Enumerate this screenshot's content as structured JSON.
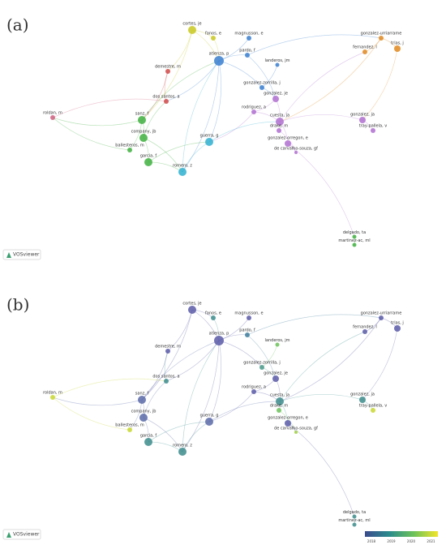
{
  "panels": [
    {
      "label": "(a)",
      "logo": "VOSviewer"
    },
    {
      "label": "(b)",
      "logo": "VOSviewer",
      "colorbar": {
        "ticks": [
          "2018",
          "2019",
          "2020",
          "2021"
        ],
        "colors": [
          "#3b4a8c",
          "#2a8c8c",
          "#6cc25a",
          "#f2e52b"
        ]
      }
    }
  ],
  "nodes": [
    {
      "label": "cortes, je",
      "color_a": "#c8c820",
      "color_b": "#5a5aa8"
    },
    {
      "label": "fanos, e",
      "color_a": "#c8c820",
      "color_b": "#3d8c8c"
    },
    {
      "label": "magnusson, e",
      "color_a": "#3a7fd0",
      "color_b": "#5a5aa8"
    },
    {
      "label": "atienza, p",
      "color_a": "#3a7fd0",
      "color_b": "#5a5aa8"
    },
    {
      "label": "pardo, f",
      "color_a": "#3a7fd0",
      "color_b": "#3d7c9c"
    },
    {
      "label": "landeros, jm",
      "color_a": "#3a7fd0",
      "color_b": "#6cc25a"
    },
    {
      "label": "gonzalez-zorrilla, j",
      "color_a": "#3a7fd0",
      "color_b": "#4a9a8a"
    },
    {
      "label": "gonzalez, je",
      "color_a": "#b070d0",
      "color_b": "#5a5aa8"
    },
    {
      "label": "rodriguez, a",
      "color_a": "#b070d0",
      "color_b": "#5a5aa8"
    },
    {
      "label": "cuesta, ja",
      "color_a": "#b070d0",
      "color_b": "#3d8c8c"
    },
    {
      "label": "drake, m",
      "color_a": "#b070d0",
      "color_b": "#6cc25a"
    },
    {
      "label": "gonzalez-orregon, e",
      "color_a": "#b070d0",
      "color_b": "#5a5aa8"
    },
    {
      "label": "de carvalho-souza, gf",
      "color_a": "#b070d0",
      "color_b": "#a0d040"
    },
    {
      "label": "gonzalez-urriarrame",
      "color_a": "#e08a20",
      "color_b": "#5a5aa8"
    },
    {
      "label": "trias, j",
      "color_a": "#e08a20",
      "color_b": "#5a5aa8"
    },
    {
      "label": "fernandez, l",
      "color_a": "#e08a20",
      "color_b": "#5a5aa8"
    },
    {
      "label": "gonzalez, ja",
      "color_a": "#b070d0",
      "color_b": "#3d8c8c"
    },
    {
      "label": "tray-pallela, v",
      "color_a": "#b070d0",
      "color_b": "#c8d830"
    },
    {
      "label": "sanz, f",
      "color_a": "#40b040",
      "color_b": "#5a6aa8"
    },
    {
      "label": "company, jb",
      "color_a": "#40b040",
      "color_b": "#5a6aa8"
    },
    {
      "label": "ballesteros, m",
      "color_a": "#40b040",
      "color_b": "#c8d830"
    },
    {
      "label": "garcia, f",
      "color_a": "#40b040",
      "color_b": "#3d8c8c"
    },
    {
      "label": "romero, z",
      "color_a": "#30b0d0",
      "color_b": "#3d8c8c"
    },
    {
      "label": "guerra, g",
      "color_a": "#30b0d0",
      "color_b": "#5a6aa8"
    },
    {
      "label": "dos santos, a",
      "color_a": "#d04a4a",
      "color_b": "#3d8c8c"
    },
    {
      "label": "demestre, m",
      "color_a": "#d04a4a",
      "color_b": "#5a5aa8"
    },
    {
      "label": "roldan, m",
      "color_a": "#d06080",
      "color_b": "#c8d830"
    },
    {
      "label": "delgado, ta",
      "color_a": "#40b040",
      "color_b": "#3d8c8c"
    },
    {
      "label": "martinez-ac, ml",
      "color_a": "#40b040",
      "color_b": "#3d8c8c"
    }
  ]
}
